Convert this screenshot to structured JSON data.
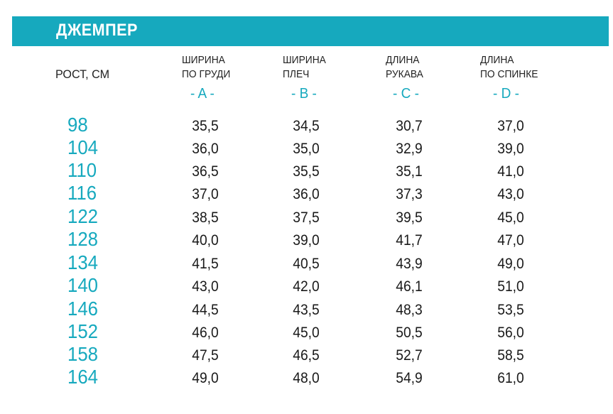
{
  "title": "ДЖЕМПЕР",
  "height_header": "РОСТ, СМ",
  "columns": [
    {
      "line1": "ШИРИНА",
      "line2": "ПО ГРУДИ",
      "letter": "- A -"
    },
    {
      "line1": "ШИРИНА",
      "line2": "ПЛЕЧ",
      "letter": "- B -"
    },
    {
      "line1": "ДЛИНА",
      "line2": "РУКАВА",
      "letter": "- C -"
    },
    {
      "line1": "ДЛИНА",
      "line2": "ПО СПИНКЕ",
      "letter": "- D -"
    }
  ],
  "rows": [
    {
      "height": "98",
      "a": "35,5",
      "b": "34,5",
      "c": "30,7",
      "d": "37,0"
    },
    {
      "height": "104",
      "a": "36,0",
      "b": "35,0",
      "c": "32,9",
      "d": "39,0"
    },
    {
      "height": "110",
      "a": "36,5",
      "b": "35,5",
      "c": "35,1",
      "d": "41,0"
    },
    {
      "height": "116",
      "a": "37,0",
      "b": "36,0",
      "c": "37,3",
      "d": "43,0"
    },
    {
      "height": "122",
      "a": "38,5",
      "b": "37,5",
      "c": "39,5",
      "d": "45,0"
    },
    {
      "height": "128",
      "a": "40,0",
      "b": "39,0",
      "c": "41,7",
      "d": "47,0"
    },
    {
      "height": "134",
      "a": "41,5",
      "b": "40,5",
      "c": "43,9",
      "d": "49,0"
    },
    {
      "height": "140",
      "a": "43,0",
      "b": "42,0",
      "c": "46,1",
      "d": "51,0"
    },
    {
      "height": "146",
      "a": "44,5",
      "b": "43,5",
      "c": "48,3",
      "d": "53,5"
    },
    {
      "height": "152",
      "a": "46,0",
      "b": "45,0",
      "c": "50,5",
      "d": "56,0"
    },
    {
      "height": "158",
      "a": "47,5",
      "b": "46,5",
      "c": "52,7",
      "d": "58,5"
    },
    {
      "height": "164",
      "a": "49,0",
      "b": "48,0",
      "c": "54,9",
      "d": "61,0"
    }
  ],
  "colors": {
    "accent": "#16a9be",
    "text": "#1a1a1a",
    "title_text": "#ffffff"
  }
}
